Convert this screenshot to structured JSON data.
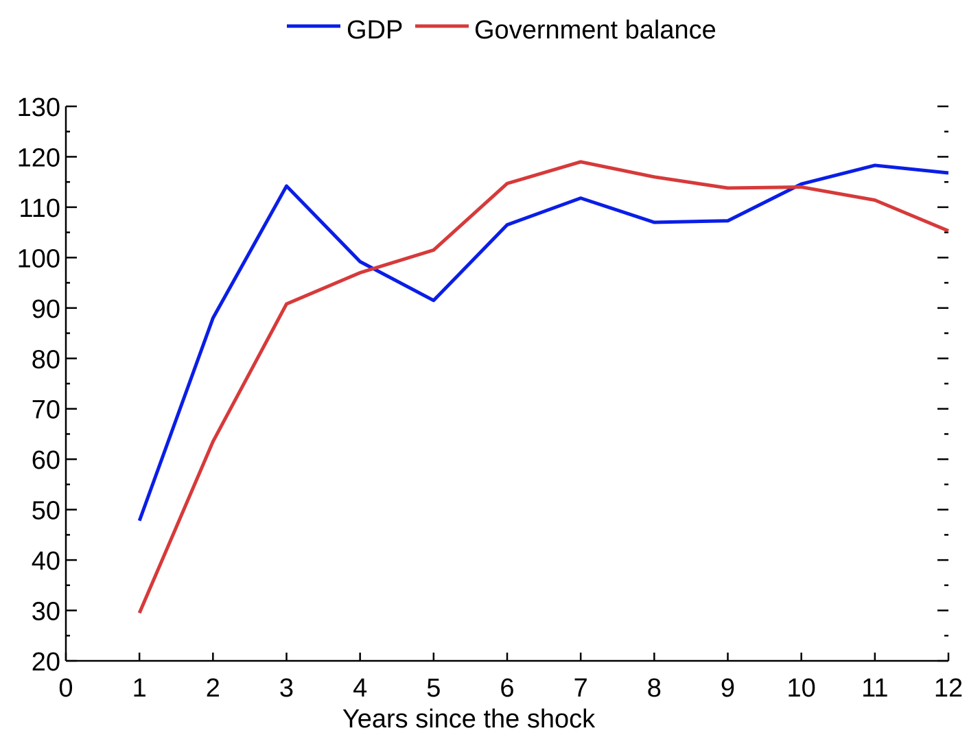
{
  "chart_data": {
    "type": "line",
    "title": "",
    "xlabel": "Years since the shock",
    "ylabel": "",
    "xlim": [
      0,
      12
    ],
    "ylim": [
      20,
      130
    ],
    "x_ticks": [
      0,
      1,
      2,
      3,
      4,
      5,
      6,
      7,
      8,
      9,
      10,
      11,
      12
    ],
    "y_ticks": [
      20,
      30,
      40,
      50,
      60,
      70,
      80,
      90,
      100,
      110,
      120,
      130
    ],
    "grid": false,
    "legend_position": "top-center",
    "x": [
      1,
      2,
      3,
      4,
      5,
      6,
      7,
      8,
      9,
      10,
      11,
      12
    ],
    "series": [
      {
        "name": "GDP",
        "color": "#0a1ee6",
        "values": [
          47.8,
          88.0,
          114.2,
          99.2,
          91.5,
          106.5,
          111.8,
          107.0,
          107.3,
          114.6,
          118.3,
          116.8
        ]
      },
      {
        "name": "Government balance",
        "color": "#d63a3a",
        "values": [
          29.5,
          63.5,
          90.8,
          97.0,
          101.5,
          114.7,
          119.0,
          116.0,
          113.8,
          114.0,
          111.4,
          105.3
        ]
      }
    ]
  }
}
